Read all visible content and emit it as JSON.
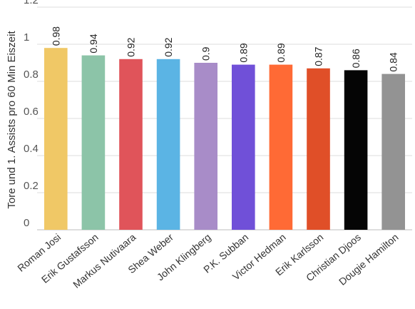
{
  "chart_data": {
    "type": "bar",
    "title": "",
    "xlabel": "",
    "ylabel": "Tore und 1. Assists pro 60 Min Eiszeit",
    "ylim": [
      0,
      1.2
    ],
    "yticks": [
      "0",
      "0.2",
      "0.4",
      "0.6",
      "0.8",
      "1",
      "1.2"
    ],
    "grid": true,
    "legend": "none",
    "categories": [
      "Roman Josi",
      "Erik Gustafsson",
      "Markus Nutivaara",
      "Shea Weber",
      "John Klingberg",
      "P.K. Subban",
      "Victor Hedman",
      "Erik Karlsson",
      "Christian Djoos",
      "Dougie Hamilton"
    ],
    "values": [
      0.98,
      0.94,
      0.92,
      0.92,
      0.9,
      0.89,
      0.89,
      0.87,
      0.86,
      0.84
    ],
    "value_labels": [
      "0.98",
      "0.94",
      "0.92",
      "0.92",
      "0.9",
      "0.89",
      "0.89",
      "0.87",
      "0.86",
      "0.84"
    ],
    "colors": [
      "#f0c866",
      "#8cc4a8",
      "#e0545a",
      "#5bb4e4",
      "#a88cc8",
      "#7050d8",
      "#ff6a35",
      "#e04f28",
      "#050505",
      "#939393"
    ]
  }
}
